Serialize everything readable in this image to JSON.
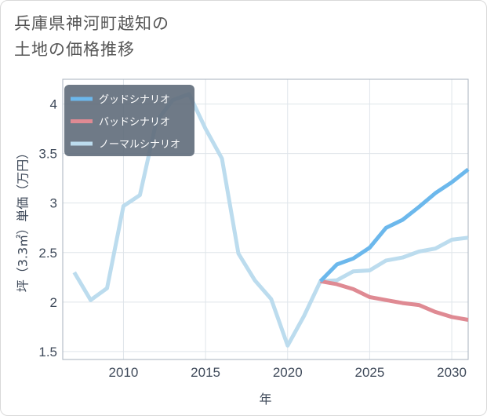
{
  "title": {
    "line1": "兵庫県神河町越知の",
    "line2": "土地の価格推移"
  },
  "chart_data": {
    "type": "line",
    "xlabel": "年",
    "ylabel": "坪（3.3㎡）単価（万円）",
    "xlim": [
      2006.3,
      2031
    ],
    "ylim": [
      1.42,
      4.25
    ],
    "x_ticks": [
      2010,
      2015,
      2020,
      2025,
      2030
    ],
    "y_ticks": [
      1.5,
      2,
      2.5,
      3,
      3.5,
      4
    ],
    "y_tick_labels": [
      "1.5",
      "2",
      "2.5",
      "3",
      "3.5",
      "4"
    ],
    "grid": true,
    "legend_position": "top-left",
    "series": [
      {
        "name": "グッドシナリオ",
        "color": "#6cb8ec",
        "x": [
          2022,
          2023,
          2024,
          2025,
          2026,
          2027,
          2028,
          2029,
          2030,
          2031
        ],
        "values": [
          2.21,
          2.38,
          2.44,
          2.55,
          2.75,
          2.83,
          2.96,
          3.1,
          3.21,
          3.34
        ]
      },
      {
        "name": "バッドシナリオ",
        "color": "#df8a93",
        "x": [
          2022,
          2023,
          2024,
          2025,
          2026,
          2027,
          2028,
          2029,
          2030,
          2031
        ],
        "values": [
          2.21,
          2.18,
          2.13,
          2.05,
          2.02,
          1.99,
          1.97,
          1.9,
          1.85,
          1.82
        ]
      },
      {
        "name": "ノーマルシナリオ",
        "color": "#bcdcee",
        "x": [
          2007,
          2008,
          2009,
          2010,
          2011,
          2012,
          2013,
          2014,
          2015,
          2016,
          2017,
          2018,
          2019,
          2020,
          2021,
          2022,
          2023,
          2024,
          2025,
          2026,
          2027,
          2028,
          2029,
          2030,
          2031
        ],
        "values": [
          2.3,
          2.02,
          2.14,
          2.97,
          3.08,
          3.82,
          4.04,
          4.1,
          3.75,
          3.45,
          2.49,
          2.22,
          2.03,
          1.56,
          1.86,
          2.21,
          2.22,
          2.31,
          2.32,
          2.42,
          2.45,
          2.51,
          2.54,
          2.63,
          2.65
        ]
      }
    ]
  }
}
